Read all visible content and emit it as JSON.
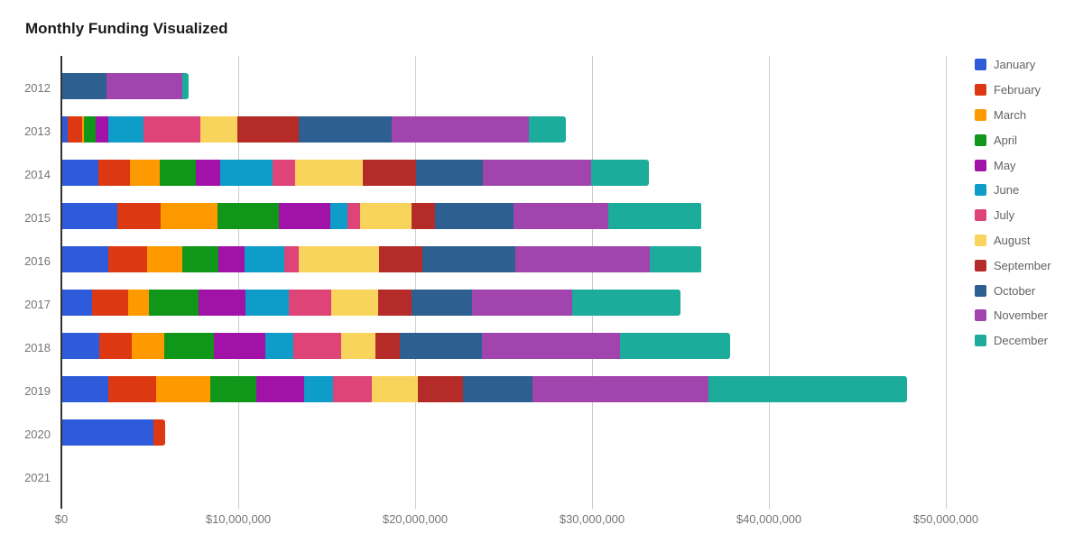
{
  "title": "Monthly Funding Visualized",
  "chart_data": {
    "type": "bar",
    "orientation": "horizontal",
    "stacked": true,
    "title": "Monthly Funding Visualized",
    "xlabel": "",
    "ylabel": "",
    "legend_position": "right",
    "grid": true,
    "axis_color": "#333333",
    "gridline_color": "#cccccc",
    "label_color": "#757575",
    "categories": [
      "2012",
      "2013",
      "2014",
      "2015",
      "2016",
      "2017",
      "2018",
      "2019",
      "2020",
      "2021"
    ],
    "x_axis": {
      "min": 0,
      "max": 50000000,
      "tick_values": [
        0,
        10000000,
        20000000,
        30000000,
        40000000,
        50000000
      ],
      "ticks": [
        "$0",
        "$10,000,000",
        "$20,000,000",
        "$30,000,000",
        "$40,000,000",
        "$50,000,000"
      ]
    },
    "series": [
      {
        "name": "January",
        "color": "#2E5BD9",
        "values": [
          0,
          300000,
          2050000,
          3100000,
          2600000,
          1700000,
          2100000,
          2600000,
          5150000,
          0
        ]
      },
      {
        "name": "February",
        "color": "#DC3912",
        "values": [
          0,
          800000,
          1800000,
          2450000,
          2200000,
          2050000,
          1850000,
          2700000,
          650000,
          0
        ]
      },
      {
        "name": "March",
        "color": "#FF9900",
        "values": [
          0,
          150000,
          1650000,
          3250000,
          2000000,
          1150000,
          1800000,
          3050000,
          0,
          0
        ]
      },
      {
        "name": "April",
        "color": "#109618",
        "values": [
          0,
          650000,
          2050000,
          3450000,
          2050000,
          2800000,
          2800000,
          2600000,
          0,
          0
        ]
      },
      {
        "name": "May",
        "color": "#A112A8",
        "values": [
          0,
          700000,
          1400000,
          2900000,
          1450000,
          2650000,
          2950000,
          2750000,
          0,
          0
        ]
      },
      {
        "name": "June",
        "color": "#0E9DC8",
        "values": [
          0,
          2000000,
          2950000,
          1000000,
          2250000,
          2450000,
          1550000,
          1600000,
          0,
          0
        ]
      },
      {
        "name": "July",
        "color": "#DE4477",
        "values": [
          0,
          3200000,
          1250000,
          700000,
          800000,
          2400000,
          2700000,
          2200000,
          0,
          0
        ]
      },
      {
        "name": "August",
        "color": "#F9D45C",
        "values": [
          0,
          2100000,
          3850000,
          2900000,
          4550000,
          2650000,
          1950000,
          2600000,
          0,
          0
        ]
      },
      {
        "name": "September",
        "color": "#B52B27",
        "values": [
          0,
          3450000,
          3000000,
          1350000,
          2450000,
          1900000,
          1400000,
          2550000,
          0,
          0
        ]
      },
      {
        "name": "October",
        "color": "#2D5F90",
        "values": [
          2500000,
          5250000,
          3800000,
          4400000,
          5250000,
          3400000,
          4650000,
          3950000,
          0,
          0
        ]
      },
      {
        "name": "November",
        "color": "#A144AD",
        "values": [
          4300000,
          7800000,
          6100000,
          5350000,
          7600000,
          5700000,
          7800000,
          9950000,
          0,
          0
        ]
      },
      {
        "name": "December",
        "color": "#1CAC9B",
        "values": [
          350000,
          2050000,
          3250000,
          5300000,
          2950000,
          6100000,
          6200000,
          11200000,
          0,
          0
        ]
      }
    ]
  }
}
